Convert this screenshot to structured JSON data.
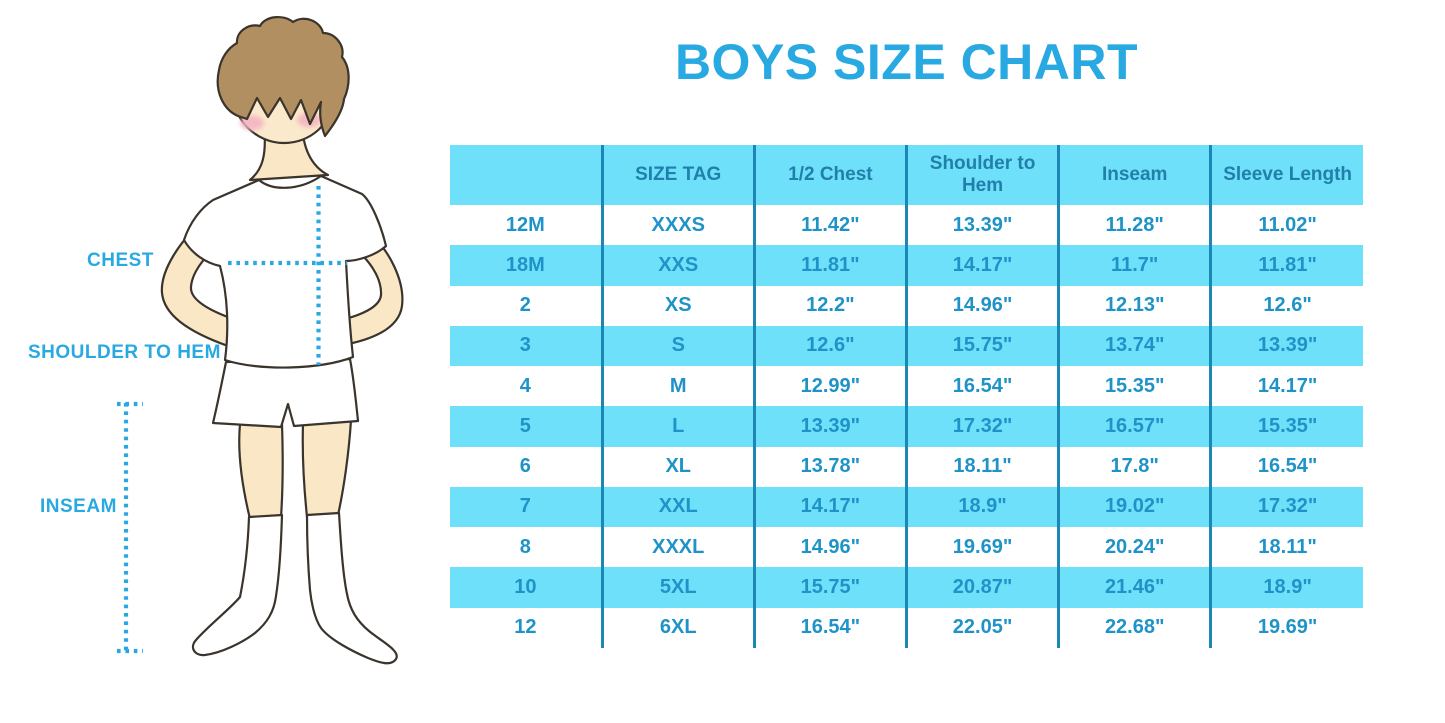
{
  "title": "BOYS SIZE CHART",
  "figure": {
    "labels": {
      "chest": "CHEST",
      "shoulder_to_hem": "SHOULDER TO HEM",
      "inseam": "INSEAM"
    },
    "illustration": "boy-in-white-tshirt-shorts-and-knee-socks-with-dotted-measurement-lines"
  },
  "colors": {
    "title_blue": "#29A9E1",
    "table_light_blue": "#6EE0FA",
    "table_divider_blue": "#1E86B5",
    "header_text_blue": "#217FAB",
    "cell_text_blue": "#1F93C8",
    "dotted_line_blue": "#2BA7E2",
    "skin": "#FAE7C5",
    "hair_brown": "#B28F61",
    "blush_pink": "#F3B3C2"
  },
  "chart_data": {
    "type": "table",
    "title": "BOYS SIZE CHART",
    "columns": [
      "",
      "SIZE TAG",
      "1/2 Chest",
      "Shoulder to Hem",
      "Inseam",
      "Sleeve Length"
    ],
    "rows": [
      [
        "12M",
        "XXXS",
        "11.42\"",
        "13.39\"",
        "11.28\"",
        "11.02\""
      ],
      [
        "18M",
        "XXS",
        "11.81\"",
        "14.17\"",
        "11.7\"",
        "11.81\""
      ],
      [
        "2",
        "XS",
        "12.2\"",
        "14.96\"",
        "12.13\"",
        "12.6\""
      ],
      [
        "3",
        "S",
        "12.6\"",
        "15.75\"",
        "13.74\"",
        "13.39\""
      ],
      [
        "4",
        "M",
        "12.99\"",
        "16.54\"",
        "15.35\"",
        "14.17\""
      ],
      [
        "5",
        "L",
        "13.39\"",
        "17.32\"",
        "16.57\"",
        "15.35\""
      ],
      [
        "6",
        "XL",
        "13.78\"",
        "18.11\"",
        "17.8\"",
        "16.54\""
      ],
      [
        "7",
        "XXL",
        "14.17\"",
        "18.9\"",
        "19.02\"",
        "17.32\""
      ],
      [
        "8",
        "XXXL",
        "14.96\"",
        "19.69\"",
        "20.24\"",
        "18.11\""
      ],
      [
        "10",
        "5XL",
        "15.75\"",
        "20.87\"",
        "21.46\"",
        "18.9\""
      ],
      [
        "12",
        "6XL",
        "16.54\"",
        "22.05\"",
        "22.68\"",
        "19.69\""
      ]
    ],
    "layout": {
      "header_fill": "light-blue",
      "row_striping": "white/light-blue alternating starting white",
      "grid": "vertical dividers only"
    }
  }
}
